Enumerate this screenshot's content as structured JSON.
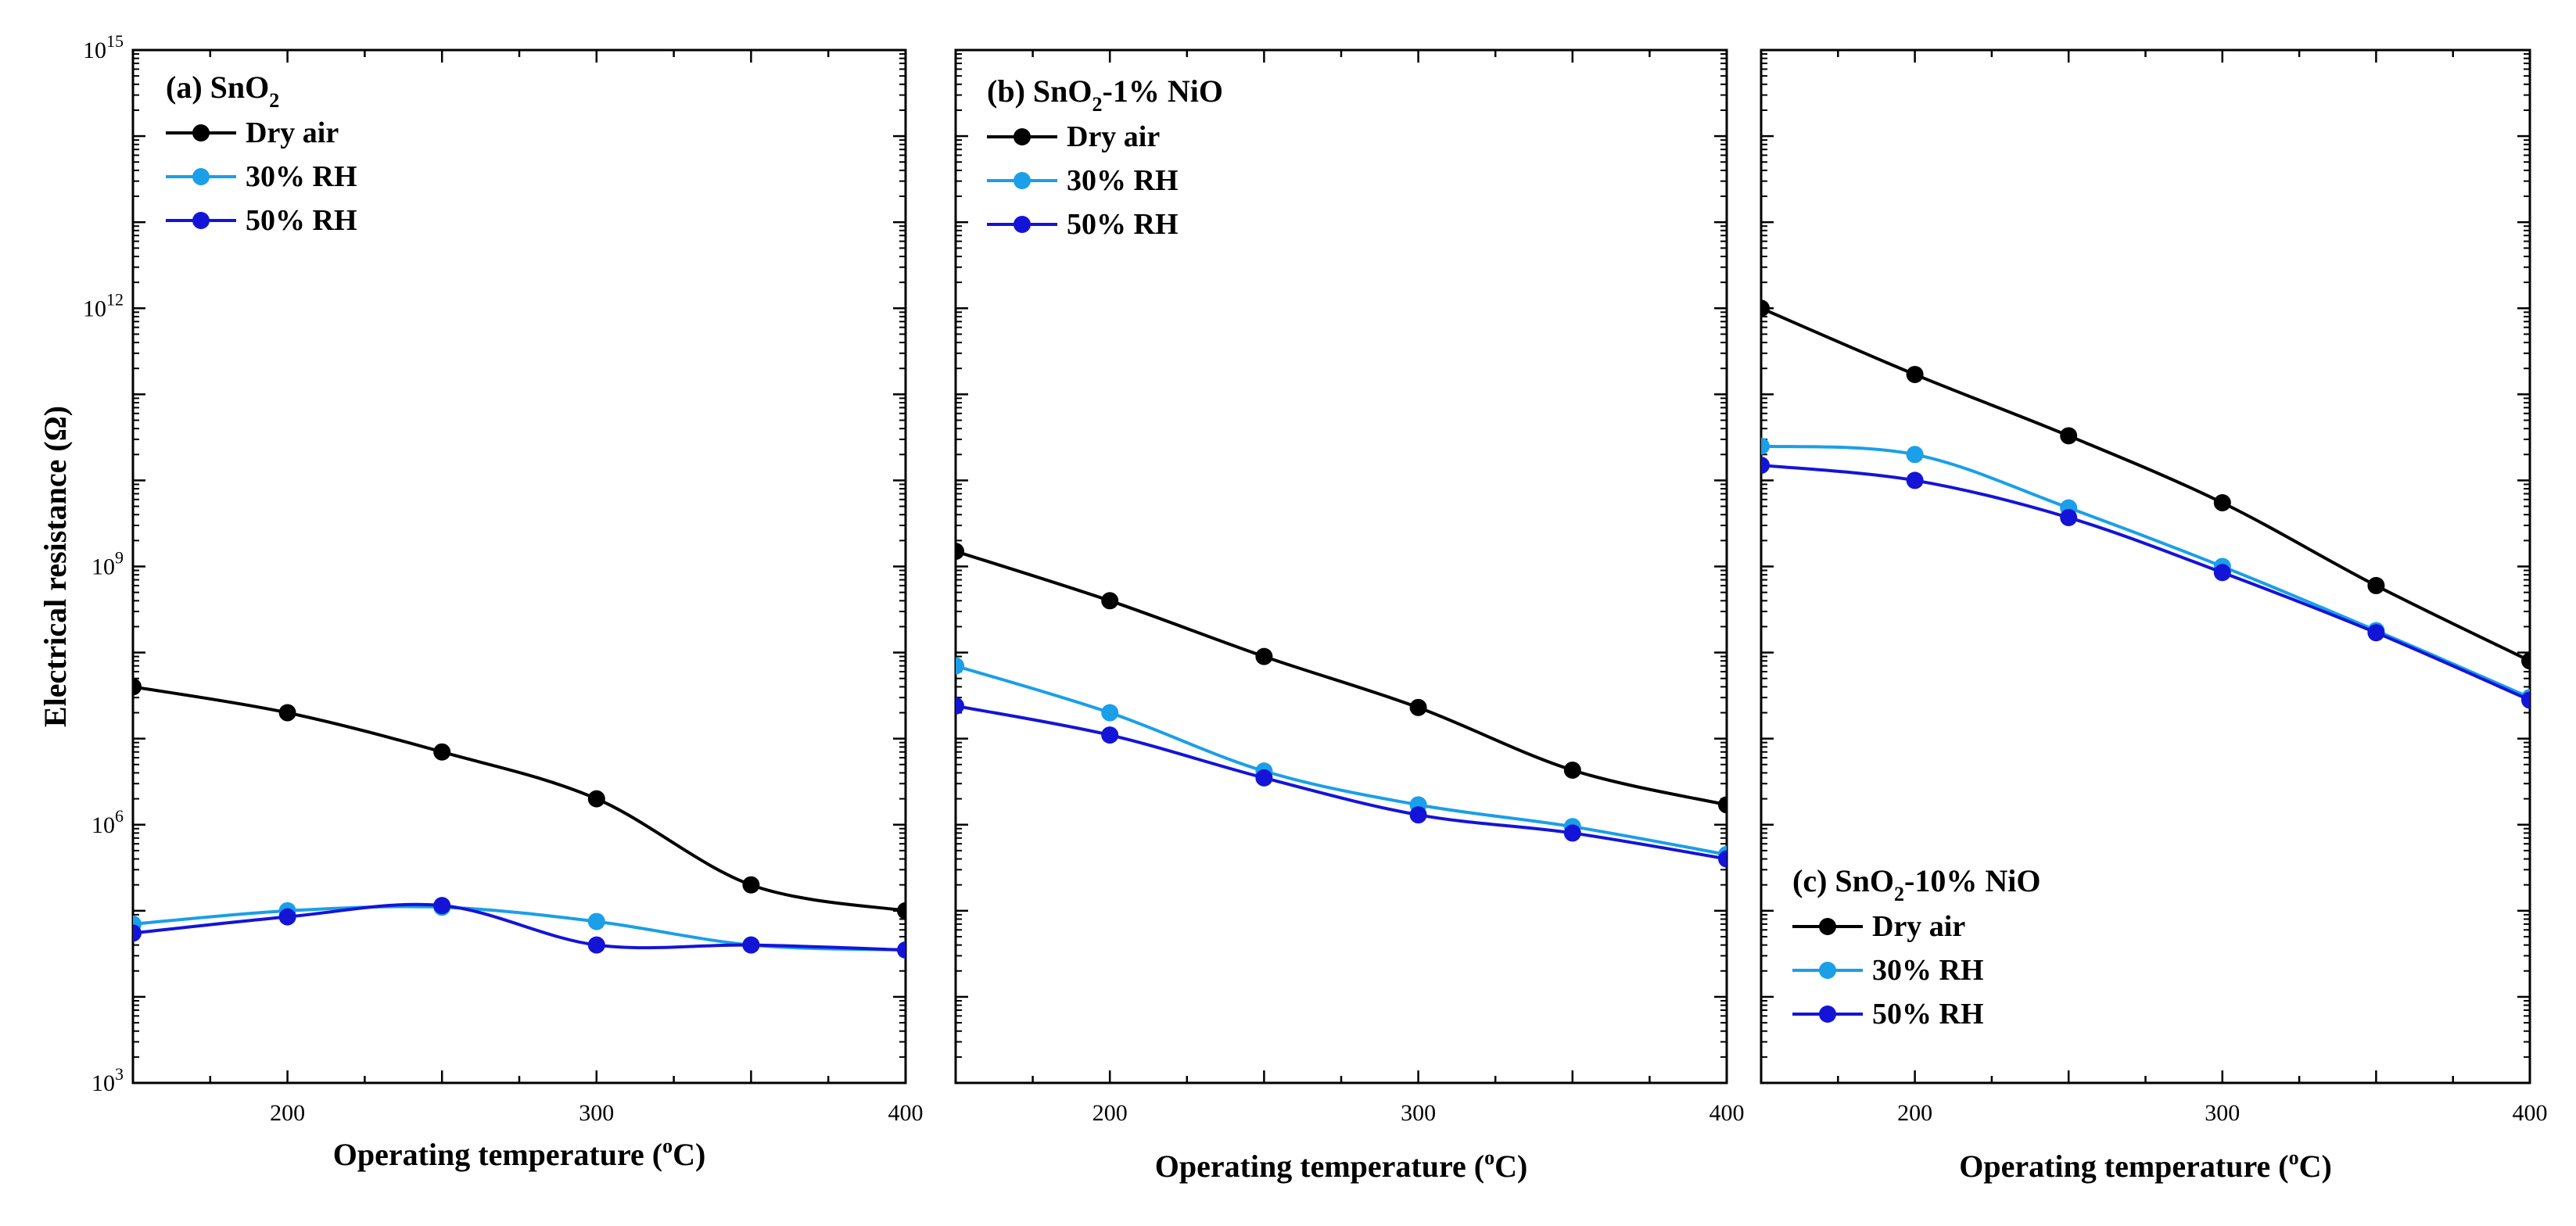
{
  "chart_data": [
    {
      "type": "line",
      "id": "a",
      "title": "(a) SnO2",
      "title_main": "(a) SnO",
      "title_sub": "2",
      "title_tail": "",
      "xlabel": "Operating temperature (oC)",
      "xlabel_main": "Operating temperature (",
      "xlabel_sup": "o",
      "xlabel_tail": "C)",
      "ylabel": "Electrical resistance (Ω)",
      "xlim": [
        150,
        400
      ],
      "ylim": [
        1000,
        1000000000000000
      ],
      "yscale": "log",
      "x": [
        150,
        200,
        250,
        300,
        350,
        400
      ],
      "x_tick_labels": [
        "200",
        "300",
        "400"
      ],
      "y_tick_labels": [
        {
          "base": "10",
          "exp": "15"
        },
        {
          "base": "10",
          "exp": "12"
        },
        {
          "base": "10",
          "exp": "9"
        },
        {
          "base": "10",
          "exp": "6"
        },
        {
          "base": "10",
          "exp": "3"
        }
      ],
      "legend_position": "top-left",
      "series": [
        {
          "name": "Dry air",
          "color": "#000000",
          "values": [
            40000000,
            20000000,
            7000000,
            2000000,
            200000,
            100000
          ]
        },
        {
          "name": "30% RH",
          "color": "#1a9fe8",
          "values": [
            70000,
            100000,
            110000,
            75000,
            40000,
            35000
          ]
        },
        {
          "name": "50% RH",
          "color": "#1414d8",
          "values": [
            55000,
            85000,
            115000,
            40000,
            40000,
            35000
          ]
        }
      ]
    },
    {
      "type": "line",
      "id": "b",
      "title": "(b) SnO2-1% NiO",
      "title_main": "(b) SnO",
      "title_sub": "2",
      "title_tail": "-1% NiO",
      "xlabel": "Operating temperature (oC)",
      "xlabel_main": "Operating temperature (",
      "xlabel_sup": "o",
      "xlabel_tail": "C)",
      "xlim": [
        150,
        400
      ],
      "ylim": [
        1000,
        1000000000000000
      ],
      "yscale": "log",
      "x": [
        150,
        200,
        250,
        300,
        350,
        400
      ],
      "x_tick_labels": [
        "200",
        "300",
        "400"
      ],
      "legend_position": "top-left",
      "series": [
        {
          "name": "Dry air",
          "color": "#000000",
          "values": [
            1500000000,
            400000000,
            90000000,
            23000000,
            4300000,
            1700000
          ]
        },
        {
          "name": "30% RH",
          "color": "#1a9fe8",
          "values": [
            70000000,
            20000000,
            4200000,
            1700000,
            950000,
            450000
          ]
        },
        {
          "name": "50% RH",
          "color": "#1414d8",
          "values": [
            24000000,
            11000000,
            3500000,
            1300000,
            800000,
            400000
          ]
        }
      ]
    },
    {
      "type": "line",
      "id": "c",
      "title": "(c) SnO2-10% NiO",
      "title_main": "(c) SnO",
      "title_sub": "2",
      "title_tail": "-10% NiO",
      "xlabel": "Operating temperature (oC)",
      "xlabel_main": "Operating temperature (",
      "xlabel_sup": "o",
      "xlabel_tail": "C)",
      "xlim": [
        150,
        400
      ],
      "ylim": [
        1000,
        1000000000000000
      ],
      "yscale": "log",
      "x": [
        150,
        200,
        250,
        300,
        350,
        400
      ],
      "x_tick_labels": [
        "200",
        "300",
        "400"
      ],
      "legend_position": "bottom-left",
      "series": [
        {
          "name": "Dry air",
          "color": "#000000",
          "values": [
            1000000000000,
            170000000000,
            33000000000,
            5500000000,
            600000000,
            80000000
          ]
        },
        {
          "name": "30% RH",
          "color": "#1a9fe8",
          "values": [
            25000000000,
            20000000000,
            4800000000,
            1000000000,
            180000000,
            30000000
          ]
        },
        {
          "name": "50% RH",
          "color": "#1414d8",
          "values": [
            15000000000,
            10000000000,
            3700000000,
            850000000,
            170000000,
            28000000
          ]
        }
      ]
    }
  ]
}
